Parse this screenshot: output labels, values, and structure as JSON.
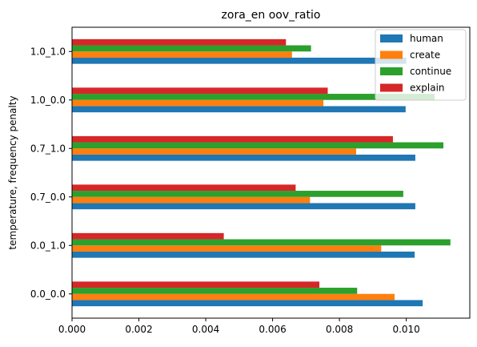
{
  "chart_data": {
    "type": "bar",
    "orientation": "horizontal",
    "title": "zora_en oov_ratio",
    "xlabel": "",
    "ylabel": "temperature, frequency penalty",
    "categories": [
      "0.0_0.0",
      "0.0_1.0",
      "0.7_0.0",
      "0.7_1.0",
      "1.0_0.0",
      "1.0_1.0"
    ],
    "xlim": [
      0,
      0.0119
    ],
    "xticks": [
      "0.000",
      "0.002",
      "0.004",
      "0.006",
      "0.008",
      "0.010"
    ],
    "grid": false,
    "legend_position": "top-right",
    "series": [
      {
        "name": "human",
        "color": "#1f77b4",
        "values": [
          0.01049,
          0.01025,
          0.01027,
          0.01027,
          0.00998,
          0.01
        ]
      },
      {
        "name": "create",
        "color": "#ff7f0e",
        "values": [
          0.00965,
          0.00925,
          0.00712,
          0.0085,
          0.00752,
          0.00658
        ]
      },
      {
        "name": "continue",
        "color": "#2ca02c",
        "values": [
          0.00853,
          0.01132,
          0.00991,
          0.01111,
          0.01085,
          0.00715
        ]
      },
      {
        "name": "explain",
        "color": "#d62728",
        "values": [
          0.0074,
          0.00454,
          0.00669,
          0.0096,
          0.00765,
          0.0064
        ]
      }
    ]
  }
}
